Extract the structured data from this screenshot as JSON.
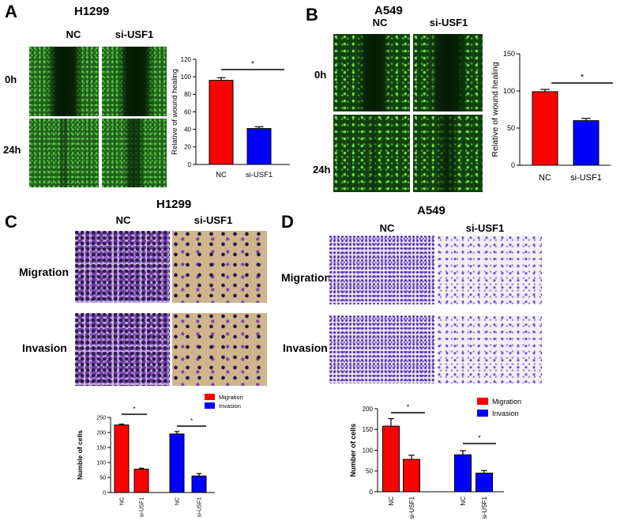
{
  "panels": {
    "A": {
      "letter": "A",
      "title": "H1299",
      "col_labels": [
        "NC",
        "si-USF1"
      ],
      "row_labels": [
        "0h",
        "24h"
      ]
    },
    "B": {
      "letter": "B",
      "title": "A549",
      "col_labels": [
        "NC",
        "si-USF1"
      ],
      "row_labels": [
        "0h",
        "24h"
      ]
    },
    "C": {
      "letter": "C",
      "title": "H1299",
      "col_labels": [
        "NC",
        "si-USF1"
      ],
      "row_labels": [
        "Migration",
        "Invasion"
      ]
    },
    "D": {
      "letter": "D",
      "title": "A549",
      "col_labels": [
        "NC",
        "si-USF1"
      ],
      "row_labels": [
        "Migration",
        "Invasion"
      ]
    }
  },
  "chart_data": [
    {
      "id": "A",
      "type": "bar",
      "categories": [
        "NC",
        "si-USF1"
      ],
      "values": [
        96,
        41
      ],
      "errors": [
        3,
        2
      ],
      "colors": [
        "#ff0000",
        "#0000ff"
      ],
      "ylabel": "Relative of wound healing",
      "ylim": [
        0,
        120
      ],
      "yticks": [
        0,
        20,
        40,
        60,
        80,
        100,
        120
      ],
      "significance": "*"
    },
    {
      "id": "B",
      "type": "bar",
      "categories": [
        "NC",
        "si-USF1"
      ],
      "values": [
        99,
        60
      ],
      "errors": [
        3,
        3
      ],
      "colors": [
        "#ff0000",
        "#0000ff"
      ],
      "ylabel": "Relative of wound healing",
      "ylim": [
        0,
        150
      ],
      "yticks": [
        0,
        50,
        100,
        150
      ],
      "significance": "*"
    },
    {
      "id": "C",
      "type": "bar",
      "x_labels": [
        "NC",
        "si-USF1",
        "NC",
        "si-USF1"
      ],
      "series": [
        {
          "name": "Migration",
          "values": [
            225,
            78
          ],
          "errors": [
            3,
            3
          ],
          "color": "#ff0000"
        },
        {
          "name": "Invasion",
          "values": [
            195,
            55
          ],
          "errors": [
            8,
            8
          ],
          "color": "#0000ff"
        }
      ],
      "ylabel": "Numble of cells",
      "ylim": [
        0,
        250
      ],
      "yticks": [
        0,
        50,
        100,
        150,
        200,
        250
      ],
      "significance": [
        "*",
        "*"
      ],
      "legend": "top-right"
    },
    {
      "id": "D",
      "type": "bar",
      "x_labels": [
        "NC",
        "si-USF1",
        "NC",
        "si-USF1"
      ],
      "series": [
        {
          "name": "Migration",
          "values": [
            158,
            78
          ],
          "errors": [
            18,
            10
          ],
          "color": "#ff0000"
        },
        {
          "name": "Invasion",
          "values": [
            89,
            45
          ],
          "errors": [
            10,
            6
          ],
          "color": "#0000ff"
        }
      ],
      "ylabel": "Number of cells",
      "ylim": [
        0,
        200
      ],
      "yticks": [
        0,
        50,
        100,
        150,
        200
      ],
      "significance": [
        "*",
        "*"
      ],
      "legend": "top-right"
    }
  ]
}
